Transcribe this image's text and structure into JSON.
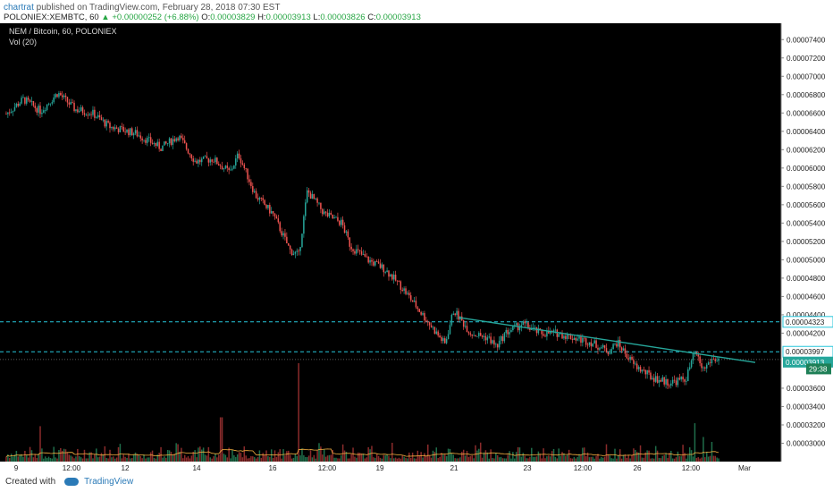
{
  "header": {
    "author": "chartrat",
    "published_text": " published on TradingView.com, February 28, 2018 07:30 EST",
    "symbol_line": "POLONIEX:XEMBTC, 60",
    "change_arrow": "▲",
    "change_text": "+0.00000252 (+6.88%)",
    "o_label": "O:",
    "o_value": "0.00003829",
    "h_label": "H:",
    "h_value": "0.00003913",
    "l_label": "L:",
    "l_value": "0.00003826",
    "c_label": "C:",
    "c_value": "0.00003913"
  },
  "legend": {
    "title": "NEM / Bitcoin, 60, POLONIEX",
    "volume": "Vol (20)"
  },
  "footer": {
    "created_with": "Created with",
    "brand": "TradingView"
  },
  "colors": {
    "background": "#000000",
    "up": "#26a69a",
    "down": "#ef5350",
    "hline": "#26c6da",
    "trendline": "#26a69a",
    "volume_ma": "#f5b041",
    "axis_bg": "#ffffff",
    "price_tag_bg": "#26a69a"
  },
  "chart_data": {
    "type": "candlestick",
    "title": "NEM / Bitcoin, 60, POLONIEX",
    "x_tick_labels": [
      "9",
      "12:00",
      "12",
      "14",
      "16",
      "12:00",
      "19",
      "21",
      "23",
      "12:00",
      "26",
      "12:00",
      "Mar"
    ],
    "y_tick_labels": [
      "0.00007400",
      "0.00007200",
      "0.00007000",
      "0.00006800",
      "0.00006600",
      "0.00006400",
      "0.00006200",
      "0.00006000",
      "0.00005800",
      "0.00005600",
      "0.00005400",
      "0.00005200",
      "0.00005000",
      "0.00004800",
      "0.00004600",
      "0.00004400",
      "0.00004200",
      "0.00003600",
      "0.00003400",
      "0.00003200",
      "0.00003000"
    ],
    "ylim": [
      2.8e-05,
      7.5e-05
    ],
    "price_path": [
      {
        "t": 0,
        "p": 6.59e-05
      },
      {
        "t": 2,
        "p": 6.75e-05
      },
      {
        "t": 4,
        "p": 6.62e-05
      },
      {
        "t": 6,
        "p": 6.82e-05
      },
      {
        "t": 8,
        "p": 6.64e-05
      },
      {
        "t": 10,
        "p": 6.6e-05
      },
      {
        "t": 12,
        "p": 6.45e-05
      },
      {
        "t": 15,
        "p": 6.38e-05
      },
      {
        "t": 18,
        "p": 6.22e-05
      },
      {
        "t": 20,
        "p": 6.35e-05
      },
      {
        "t": 22,
        "p": 6.07e-05
      },
      {
        "t": 24,
        "p": 6.1e-05
      },
      {
        "t": 26,
        "p": 5.95e-05
      },
      {
        "t": 27,
        "p": 6.15e-05
      },
      {
        "t": 29,
        "p": 5.7e-05
      },
      {
        "t": 31,
        "p": 5.5e-05
      },
      {
        "t": 33,
        "p": 5.1e-05
      },
      {
        "t": 34,
        "p": 5.05e-05
      },
      {
        "t": 35,
        "p": 5.75e-05
      },
      {
        "t": 37,
        "p": 5.5e-05
      },
      {
        "t": 39,
        "p": 5.4e-05
      },
      {
        "t": 40,
        "p": 5.15e-05
      },
      {
        "t": 42,
        "p": 5e-05
      },
      {
        "t": 44,
        "p": 4.9e-05
      },
      {
        "t": 46,
        "p": 4.7e-05
      },
      {
        "t": 48,
        "p": 4.45e-05
      },
      {
        "t": 50,
        "p": 4.2e-05
      },
      {
        "t": 51,
        "p": 4.08e-05
      },
      {
        "t": 52,
        "p": 4.45e-05
      },
      {
        "t": 54,
        "p": 4.2e-05
      },
      {
        "t": 56,
        "p": 4.15e-05
      },
      {
        "t": 57,
        "p": 4.05e-05
      },
      {
        "t": 58,
        "p": 4.2e-05
      },
      {
        "t": 60,
        "p": 4.3e-05
      },
      {
        "t": 62,
        "p": 4.2e-05
      },
      {
        "t": 64,
        "p": 4.2e-05
      },
      {
        "t": 66,
        "p": 4.15e-05
      },
      {
        "t": 68,
        "p": 4.1e-05
      },
      {
        "t": 70,
        "p": 4e-05
      },
      {
        "t": 71,
        "p": 4.1e-05
      },
      {
        "t": 73,
        "p": 3.85e-05
      },
      {
        "t": 75,
        "p": 3.72e-05
      },
      {
        "t": 77,
        "p": 3.66e-05
      },
      {
        "t": 79,
        "p": 3.7e-05
      },
      {
        "t": 80,
        "p": 3.99e-05
      },
      {
        "t": 81,
        "p": 3.8e-05
      },
      {
        "t": 82,
        "p": 3.913e-05
      }
    ],
    "horizontal_lines": [
      4.323e-05,
      3.997e-05
    ],
    "current_price": 3.913e-05,
    "trendline": [
      {
        "t": 52,
        "p": 4.37e-05
      },
      {
        "t": 86,
        "p": 3.88e-05
      }
    ],
    "volume_spikes": [
      {
        "t": 34,
        "v": 1.0
      },
      {
        "t": 25,
        "v": 0.45
      },
      {
        "t": 4,
        "v": 0.36
      },
      {
        "t": 80,
        "v": 0.39
      },
      {
        "t": 81,
        "v": 0.25
      },
      {
        "t": 82,
        "v": 0.2
      }
    ],
    "price_tags": [
      {
        "text": "0.00004323",
        "value": 4.323e-05,
        "style": "hline"
      },
      {
        "text": "0.00003997",
        "value": 3.997e-05,
        "style": "hline"
      },
      {
        "text": "0.00003913",
        "value": 3.913e-05,
        "style": "price"
      },
      {
        "text": "29:38",
        "value": 3.81e-05,
        "style": "timer"
      }
    ]
  }
}
